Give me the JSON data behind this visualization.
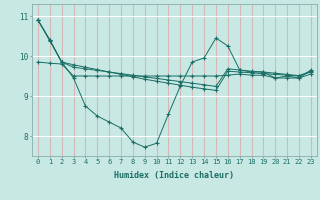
{
  "xlabel": "Humidex (Indice chaleur)",
  "bg_color": "#c8e8e4",
  "vgrid_color": "#d4b8b8",
  "hgrid_color": "#ffffff",
  "line_color": "#1a6e65",
  "x": [
    0,
    1,
    2,
    3,
    4,
    5,
    6,
    7,
    8,
    9,
    10,
    11,
    12,
    13,
    14,
    15,
    16,
    17,
    18,
    19,
    20,
    21,
    22,
    23
  ],
  "series1": [
    10.9,
    10.4,
    9.85,
    9.78,
    9.72,
    9.66,
    9.6,
    9.54,
    9.48,
    9.42,
    9.37,
    9.32,
    9.27,
    9.22,
    9.18,
    9.14,
    9.62,
    9.6,
    9.58,
    9.56,
    9.54,
    9.52,
    9.5,
    9.6
  ],
  "series2": [
    10.9,
    10.4,
    9.85,
    9.45,
    8.75,
    8.5,
    8.35,
    8.2,
    7.85,
    7.72,
    7.82,
    8.55,
    9.25,
    9.85,
    9.95,
    10.45,
    10.25,
    9.65,
    9.6,
    9.6,
    9.45,
    9.5,
    9.45,
    9.65
  ],
  "series3": [
    9.85,
    9.82,
    9.8,
    9.5,
    9.5,
    9.5,
    9.5,
    9.5,
    9.5,
    9.5,
    9.5,
    9.5,
    9.5,
    9.5,
    9.5,
    9.5,
    9.52,
    9.55,
    9.52,
    9.52,
    9.45,
    9.45,
    9.45,
    9.55
  ],
  "series4": [
    10.9,
    10.38,
    9.85,
    9.72,
    9.68,
    9.64,
    9.6,
    9.56,
    9.52,
    9.48,
    9.44,
    9.4,
    9.36,
    9.32,
    9.28,
    9.24,
    9.68,
    9.65,
    9.62,
    9.6,
    9.57,
    9.54,
    9.51,
    9.62
  ],
  "ylim": [
    7.5,
    11.3
  ],
  "yticks": [
    8,
    9,
    10,
    11
  ],
  "xticks": [
    0,
    1,
    2,
    3,
    4,
    5,
    6,
    7,
    8,
    9,
    10,
    11,
    12,
    13,
    14,
    15,
    16,
    17,
    18,
    19,
    20,
    21,
    22,
    23
  ],
  "xlabel_fontsize": 6.0,
  "tick_fontsize": 5.0
}
